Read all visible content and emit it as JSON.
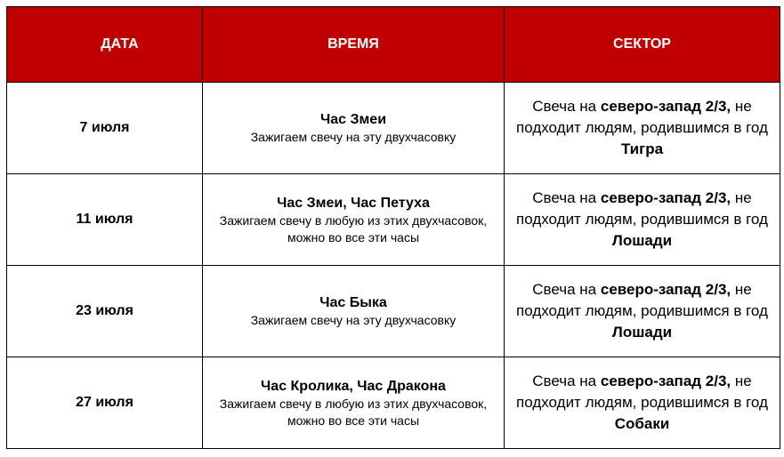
{
  "colors": {
    "header_bg": "#C00000",
    "header_text": "#FFFFFF"
  },
  "headers": [
    "ДАТА",
    "ВРЕМЯ",
    "СЕКТОР"
  ],
  "rows": [
    {
      "date": "7 июля",
      "time_title": "Час Змеи",
      "time_note": "Зажигаем свечу на эту двухчасовку",
      "sector_prefix": "Свеча на ",
      "sector_bold": "северо-запад 2/3,",
      "sector_mid": " не подходит людям, родившимся в год ",
      "sector_animal": "Тигра"
    },
    {
      "date": "11 июля",
      "time_title": "Час Змеи, Час Петуха",
      "time_note": "Зажигаем свечу в любую из этих двухчасовок, можно во все эти часы",
      "sector_prefix": "Свеча на ",
      "sector_bold": "северо-запад 2/3,",
      "sector_mid": " не подходит людям, родившимся в год ",
      "sector_animal": "Лошади"
    },
    {
      "date": "23 июля",
      "time_title": "Час Быка",
      "time_note": "Зажигаем свечу на эту двухчасовку",
      "sector_prefix": "Свеча на ",
      "sector_bold": "северо-запад 2/3,",
      "sector_mid": " не подходит людям, родившимся в год ",
      "sector_animal": "Лошади"
    },
    {
      "date": "27 июля",
      "time_title": "Час Кролика, Час Дракона",
      "time_note": "Зажигаем свечу в любую из этих двухчасовок, можно во все эти часы",
      "sector_prefix": "Свеча на ",
      "sector_bold": "северо-запад 2/3,",
      "sector_mid": " не подходит людям, родившимся в год ",
      "sector_animal": "Собаки"
    }
  ]
}
